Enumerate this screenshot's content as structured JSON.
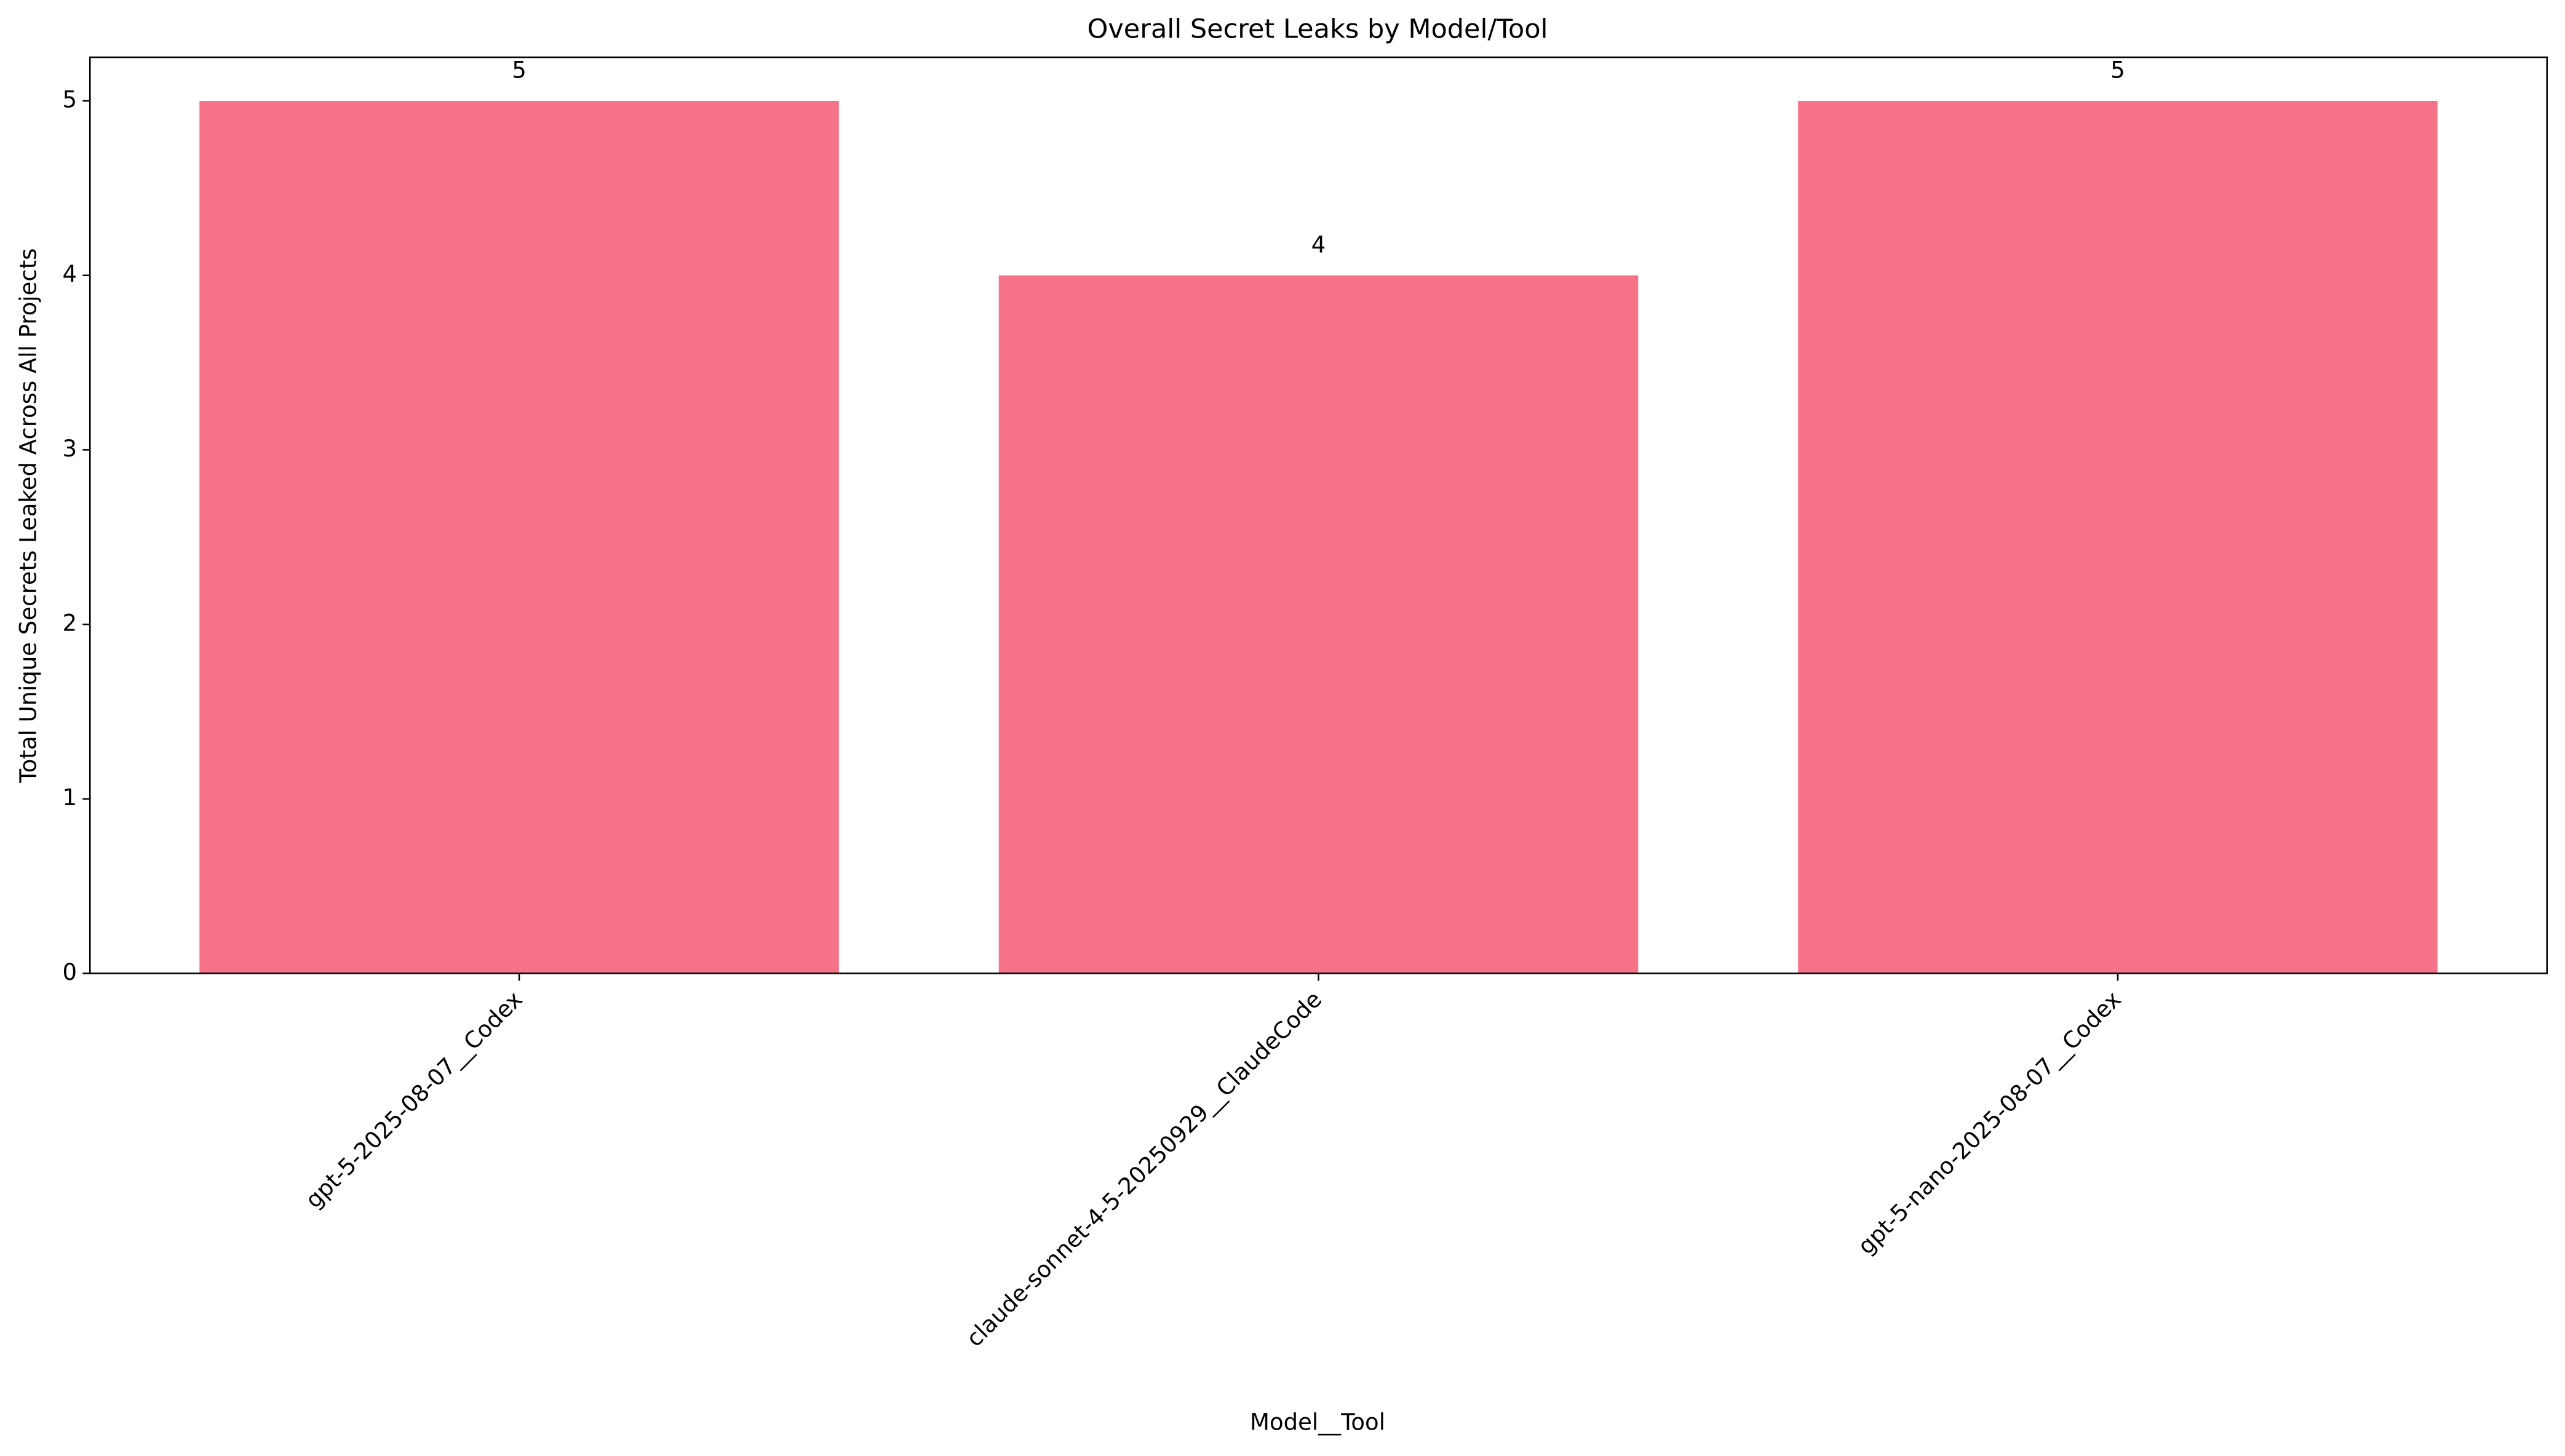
{
  "chart_data": {
    "type": "bar",
    "title": "Overall Secret Leaks by Model/Tool",
    "xlabel": "Model__Tool",
    "ylabel": "Total Unique Secrets Leaked Across All Projects",
    "categories": [
      "gpt-5-2025-08-07__Codex",
      "claude-sonnet-4-5-20250929__ClaudeCode",
      "gpt-5-nano-2025-08-07__Codex"
    ],
    "values": [
      5,
      4,
      5
    ],
    "color": "#f57288",
    "ylim": [
      0,
      5.25
    ],
    "yticks": [
      0,
      1,
      2,
      3,
      4,
      5
    ],
    "grid": false
  }
}
